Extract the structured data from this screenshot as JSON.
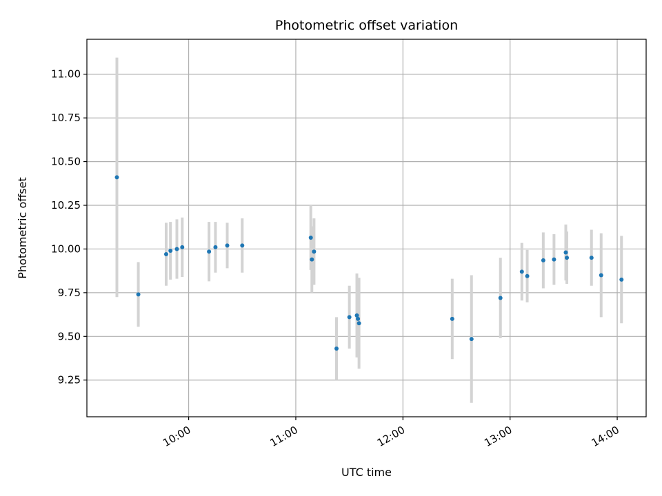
{
  "chart_data": {
    "type": "scatter",
    "title": "Photometric offset variation",
    "xlabel": "UTC time",
    "ylabel": "Photometric offset",
    "xlim_hours": [
      9.05,
      14.27
    ],
    "ylim": [
      9.04,
      11.2
    ],
    "grid": true,
    "x_ticks": [
      {
        "value": 10.0,
        "label": "10:00"
      },
      {
        "value": 11.0,
        "label": "11:00"
      },
      {
        "value": 12.0,
        "label": "12:00"
      },
      {
        "value": 13.0,
        "label": "13:00"
      },
      {
        "value": 14.0,
        "label": "14:00"
      }
    ],
    "y_ticks": [
      {
        "value": 9.25,
        "label": "9.25"
      },
      {
        "value": 9.5,
        "label": "9.50"
      },
      {
        "value": 9.75,
        "label": "9.75"
      },
      {
        "value": 10.0,
        "label": "10.00"
      },
      {
        "value": 10.25,
        "label": "10.25"
      },
      {
        "value": 10.5,
        "label": "10.50"
      },
      {
        "value": 10.75,
        "label": "10.75"
      },
      {
        "value": 11.0,
        "label": "11.00"
      }
    ],
    "point_color": "#1f77b4",
    "errorbar_color": "#d3d3d3",
    "points": [
      {
        "x": 9.33,
        "y": 10.41,
        "err": 0.685
      },
      {
        "x": 9.53,
        "y": 9.74,
        "err": 0.185
      },
      {
        "x": 9.79,
        "y": 9.97,
        "err": 0.18
      },
      {
        "x": 9.83,
        "y": 9.99,
        "err": 0.165
      },
      {
        "x": 9.89,
        "y": 10.0,
        "err": 0.17
      },
      {
        "x": 9.94,
        "y": 10.01,
        "err": 0.17
      },
      {
        "x": 10.19,
        "y": 9.985,
        "err": 0.17
      },
      {
        "x": 10.25,
        "y": 10.01,
        "err": 0.145
      },
      {
        "x": 10.36,
        "y": 10.02,
        "err": 0.13
      },
      {
        "x": 10.5,
        "y": 10.02,
        "err": 0.155
      },
      {
        "x": 11.14,
        "y": 10.065,
        "err": 0.185
      },
      {
        "x": 11.15,
        "y": 9.94,
        "err": 0.19
      },
      {
        "x": 11.17,
        "y": 9.985,
        "err": 0.19
      },
      {
        "x": 11.38,
        "y": 9.43,
        "err": 0.18
      },
      {
        "x": 11.5,
        "y": 9.61,
        "err": 0.18
      },
      {
        "x": 11.57,
        "y": 9.62,
        "err": 0.24
      },
      {
        "x": 11.58,
        "y": 9.6,
        "err": 0.22
      },
      {
        "x": 11.59,
        "y": 9.575,
        "err": 0.26
      },
      {
        "x": 12.46,
        "y": 9.6,
        "err": 0.23
      },
      {
        "x": 12.64,
        "y": 9.485,
        "err": 0.365
      },
      {
        "x": 12.91,
        "y": 9.72,
        "err": 0.23
      },
      {
        "x": 13.11,
        "y": 9.87,
        "err": 0.165
      },
      {
        "x": 13.16,
        "y": 9.845,
        "err": 0.15
      },
      {
        "x": 13.31,
        "y": 9.935,
        "err": 0.16
      },
      {
        "x": 13.41,
        "y": 9.94,
        "err": 0.145
      },
      {
        "x": 13.52,
        "y": 9.98,
        "err": 0.16
      },
      {
        "x": 13.53,
        "y": 9.95,
        "err": 0.15
      },
      {
        "x": 13.76,
        "y": 9.95,
        "err": 0.16
      },
      {
        "x": 13.85,
        "y": 9.85,
        "err": 0.24
      },
      {
        "x": 14.04,
        "y": 9.825,
        "err": 0.25
      }
    ]
  }
}
